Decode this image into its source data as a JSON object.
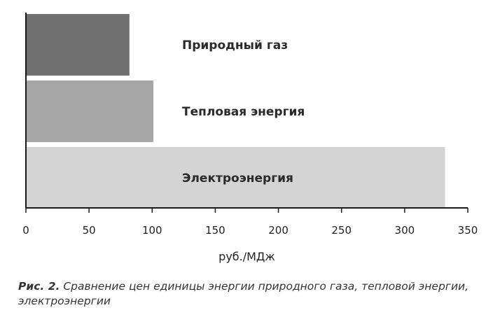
{
  "chart_data": {
    "type": "bar",
    "orientation": "horizontal",
    "categories": [
      "Природный газ",
      "Тепловая энергия",
      "Электроэнергия"
    ],
    "values": [
      82,
      101,
      332
    ],
    "xlabel": "руб./МДж",
    "ylabel": "",
    "xlim": [
      0,
      350
    ],
    "xticks": [
      0,
      50,
      100,
      150,
      200,
      250,
      300,
      350
    ],
    "grid": false,
    "legend": "none",
    "colors": [
      "#717171",
      "#a6a6a6",
      "#d4d4d4"
    ]
  },
  "caption": {
    "prefix": "Рис. 2.",
    "text": "Сравнение цен единицы энергии природного газа, тепловой энергии, электроэнергии"
  }
}
